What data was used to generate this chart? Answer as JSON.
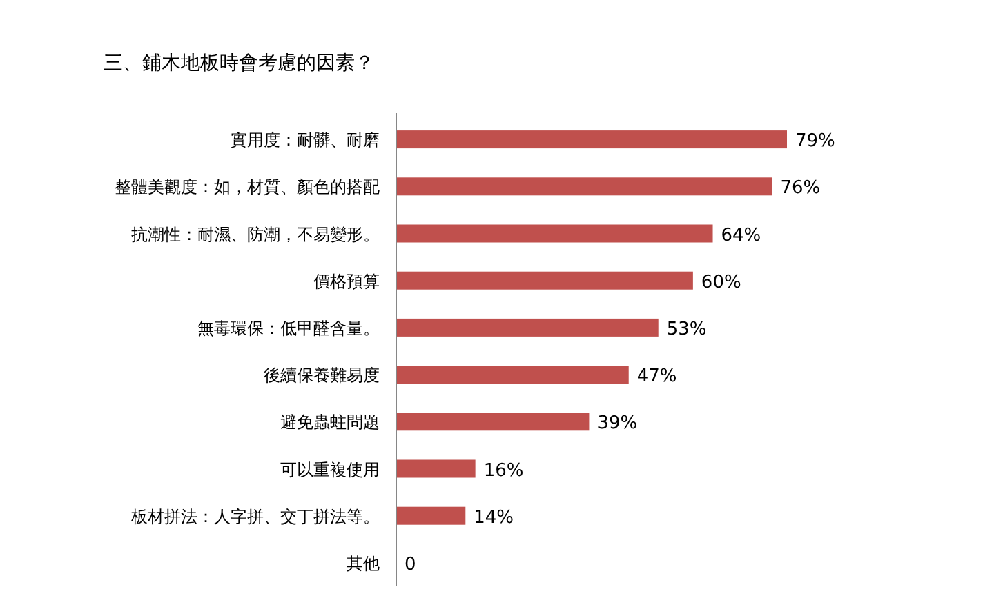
{
  "chart_data": {
    "type": "bar",
    "orientation": "horizontal",
    "title": "三、鋪木地板時會考慮的因素？",
    "categories": [
      "實用度：耐髒、耐磨",
      "整體美觀度：如，材質、顏色的搭配",
      "抗潮性：耐濕、防潮，不易變形。",
      "價格預算",
      "無毒環保：低甲醛含量。",
      "後續保養難易度",
      "避免蟲蛀問題",
      "可以重複使用",
      "板材拼法：人字拼、交丁拼法等。",
      "其他"
    ],
    "values": [
      79,
      76,
      64,
      60,
      53,
      47,
      39,
      16,
      14,
      0
    ],
    "value_labels": [
      "79%",
      "76%",
      "64%",
      "60%",
      "53%",
      "47%",
      "39%",
      "16%",
      "14%",
      "0"
    ],
    "color": "#c0504d",
    "tick_labels": "y"
  }
}
